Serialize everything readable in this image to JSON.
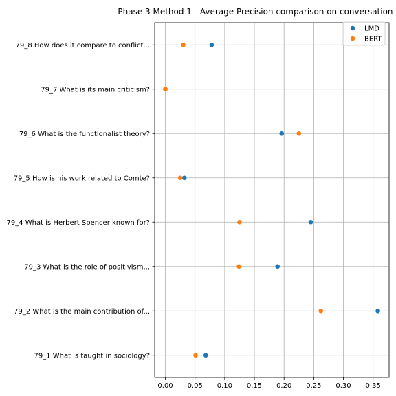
{
  "chart_data": {
    "type": "scatter",
    "title": "Phase 3 Method 1 - Average Precision comparison on conversation 79",
    "xlabel": "",
    "ylabel": "",
    "xlim": [
      -0.018,
      0.377
    ],
    "xticks": [
      0.0,
      0.05,
      0.1,
      0.15,
      0.2,
      0.25,
      0.3,
      0.35
    ],
    "xtick_labels": [
      "0.00",
      "0.05",
      "0.10",
      "0.15",
      "0.20",
      "0.25",
      "0.30",
      "0.35"
    ],
    "categories": [
      "79_1 What is taught in sociology?",
      "79_2 What is the main contribution of...",
      "79_3 What is the role of positivism...",
      "79_4 What is Herbert Spencer known for?",
      "79_5 How is his work related to Comte?",
      "79_6 What is the functionalist theory?",
      "79_7 What is its main criticism?",
      "79_8 How does it compare to conflict..."
    ],
    "series": [
      {
        "name": "LMD",
        "color": "#1f77b4",
        "values": [
          0.068,
          0.358,
          0.189,
          0.245,
          0.032,
          0.196,
          0.0,
          0.078
        ]
      },
      {
        "name": "BERT",
        "color": "#ff7f0e",
        "values": [
          0.051,
          0.262,
          0.124,
          0.125,
          0.025,
          0.225,
          0.0,
          0.03
        ]
      }
    ],
    "grid": true,
    "legend_position": "top-right"
  }
}
